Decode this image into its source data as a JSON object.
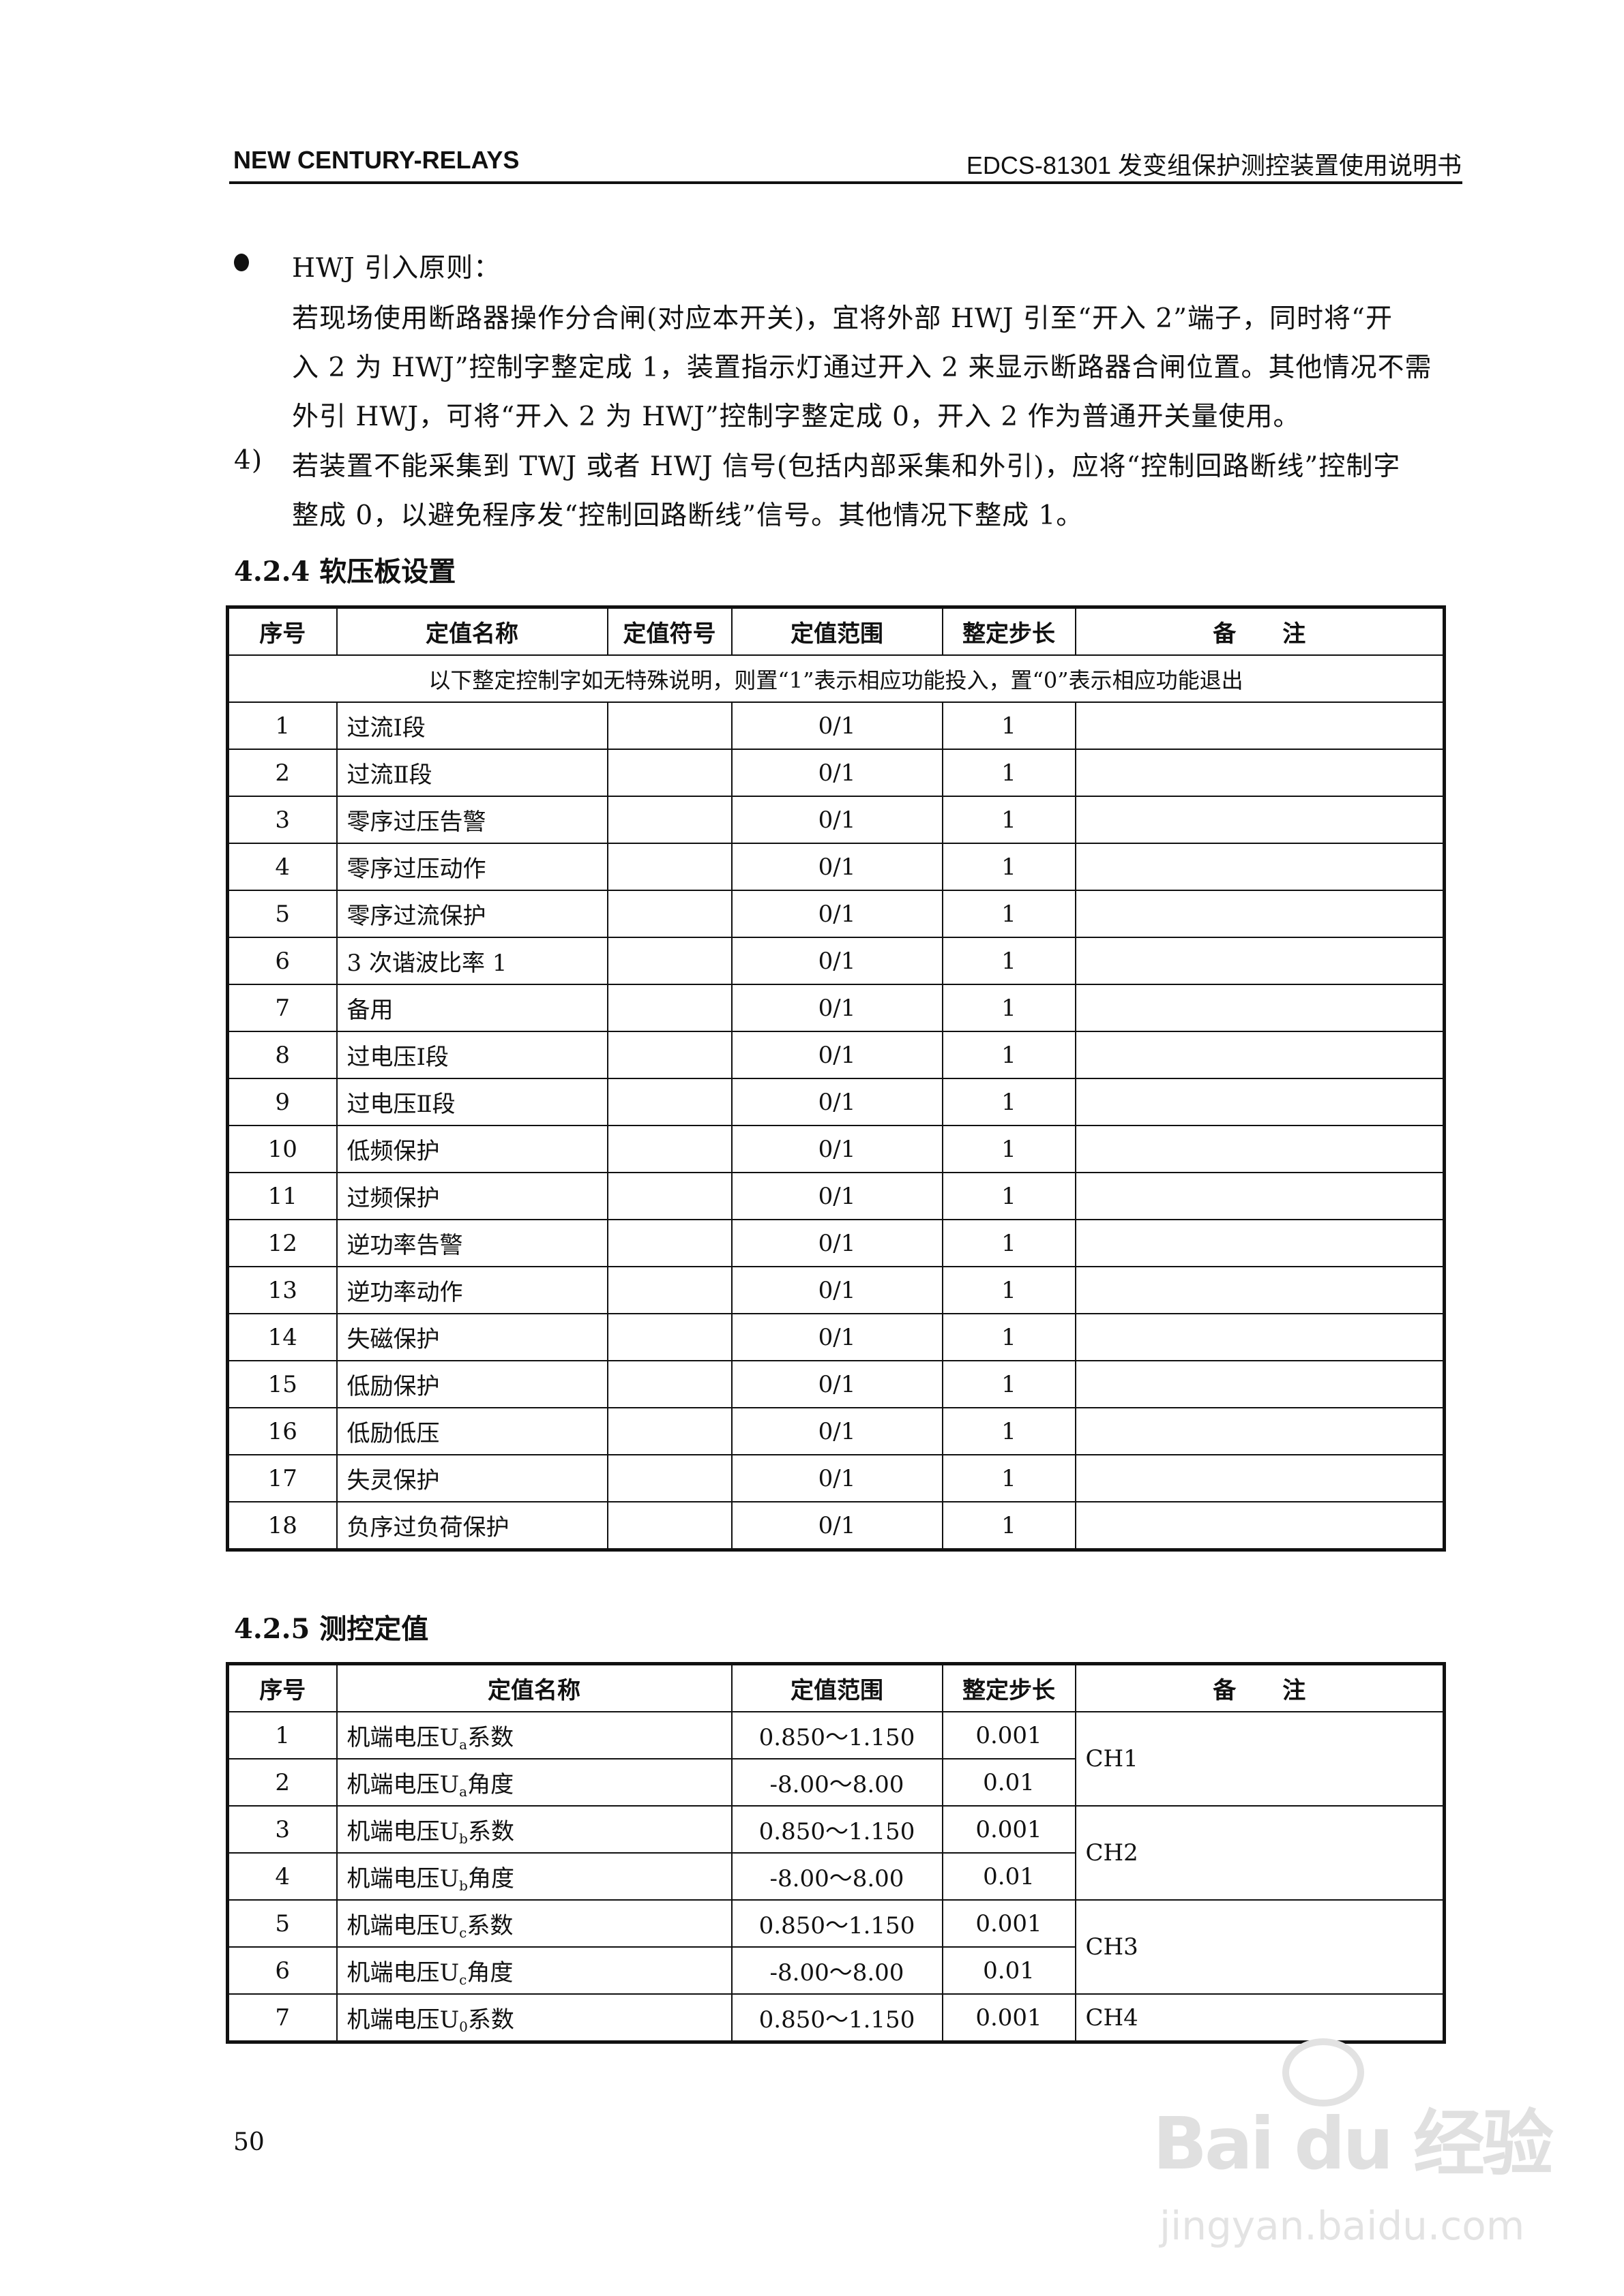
{
  "header": {
    "left": "NEW CENTURY-RELAYS",
    "right": "EDCS-81301 发变组保护测控装置使用说明书"
  },
  "body": {
    "bullet_title": "HWJ 引入原则：",
    "bullet_lines": [
      "若现场使用断路器操作分合闸(对应本开关)，宜将外部 HWJ 引至“开入 2”端子，同时将“开",
      "入 2 为 HWJ”控制字整定成 1，装置指示灯通过开入 2 来显示断路器合闸位置。其他情况不需",
      "外引 HWJ，可将“开入 2 为 HWJ”控制字整定成 0，开入 2 作为普通开关量使用。"
    ],
    "item4_num": "4)",
    "item4_lines": [
      "若装置不能采集到 TWJ 或者 HWJ 信号(包括内部采集和外引)，应将“控制回路断线”控制字",
      "整成 0，以避免程序发“控制回路断线”信号。其他情况下整成 1。"
    ]
  },
  "section1": {
    "heading": "4.2.4  软压板设置",
    "columns": [
      "序号",
      "定值名称",
      "定值符号",
      "定值范围",
      "整定步长",
      "备　　注"
    ],
    "note": "以下整定控制字如无特殊说明，则置“1”表示相应功能投入，置“0”表示相应功能退出",
    "rows": [
      [
        "1",
        "过流Ⅰ段",
        "",
        "0/1",
        "1",
        ""
      ],
      [
        "2",
        "过流Ⅱ段",
        "",
        "0/1",
        "1",
        ""
      ],
      [
        "3",
        "零序过压告警",
        "",
        "0/1",
        "1",
        ""
      ],
      [
        "4",
        "零序过压动作",
        "",
        "0/1",
        "1",
        ""
      ],
      [
        "5",
        "零序过流保护",
        "",
        "0/1",
        "1",
        ""
      ],
      [
        "6",
        "3 次谐波比率 1",
        "",
        "0/1",
        "1",
        ""
      ],
      [
        "7",
        "备用",
        "",
        "0/1",
        "1",
        ""
      ],
      [
        "8",
        "过电压Ⅰ段",
        "",
        "0/1",
        "1",
        ""
      ],
      [
        "9",
        "过电压Ⅱ段",
        "",
        "0/1",
        "1",
        ""
      ],
      [
        "10",
        "低频保护",
        "",
        "0/1",
        "1",
        ""
      ],
      [
        "11",
        "过频保护",
        "",
        "0/1",
        "1",
        ""
      ],
      [
        "12",
        "逆功率告警",
        "",
        "0/1",
        "1",
        ""
      ],
      [
        "13",
        "逆功率动作",
        "",
        "0/1",
        "1",
        ""
      ],
      [
        "14",
        "失磁保护",
        "",
        "0/1",
        "1",
        ""
      ],
      [
        "15",
        "低励保护",
        "",
        "0/1",
        "1",
        ""
      ],
      [
        "16",
        "低励低压",
        "",
        "0/1",
        "1",
        ""
      ],
      [
        "17",
        "失灵保护",
        "",
        "0/1",
        "1",
        ""
      ],
      [
        "18",
        "负序过负荷保护",
        "",
        "0/1",
        "1",
        ""
      ]
    ]
  },
  "section2": {
    "heading": "4.2.5  测控定值",
    "columns": [
      "序号",
      "定值名称",
      "定值范围",
      "整定步长",
      "备　　注"
    ],
    "rows": [
      {
        "no": "1",
        "pre": "机端电压U",
        "sub": "a",
        "post": "系数",
        "range": "0.850～1.150",
        "step": "0.001"
      },
      {
        "no": "2",
        "pre": "机端电压U",
        "sub": "a",
        "post": "角度",
        "range": "-8.00～8.00",
        "step": "0.01"
      },
      {
        "no": "3",
        "pre": "机端电压U",
        "sub": "b",
        "post": "系数",
        "range": "0.850～1.150",
        "step": "0.001"
      },
      {
        "no": "4",
        "pre": "机端电压U",
        "sub": "b",
        "post": "角度",
        "range": "-8.00～8.00",
        "step": "0.01"
      },
      {
        "no": "5",
        "pre": "机端电压U",
        "sub": "c",
        "post": "系数",
        "range": "0.850～1.150",
        "step": "0.001"
      },
      {
        "no": "6",
        "pre": "机端电压U",
        "sub": "c",
        "post": "角度",
        "range": "-8.00～8.00",
        "step": "0.01"
      },
      {
        "no": "7",
        "pre": "机端电压U",
        "sub": "0",
        "post": "系数",
        "range": "0.850～1.150",
        "step": "0.001"
      }
    ],
    "remarks": [
      {
        "text": "CH1",
        "rows": 2
      },
      {
        "text": "CH2",
        "rows": 2
      },
      {
        "text": "CH3",
        "rows": 2
      },
      {
        "text": "CH4",
        "rows": 1
      }
    ]
  },
  "page_number": "50",
  "watermark": {
    "logo": "Bai du 经验",
    "url": "jingyan.baidu.com"
  }
}
